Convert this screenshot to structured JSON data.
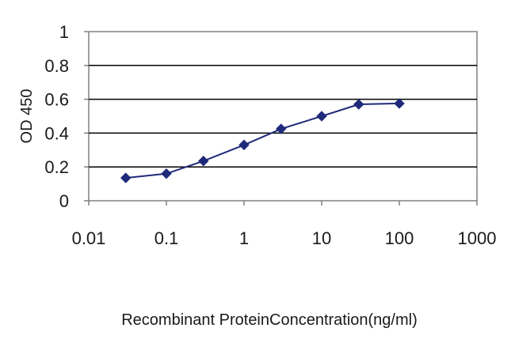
{
  "chart_data": {
    "type": "line",
    "title": "",
    "xlabel": "Recombinant ProteinConcentration(ng/ml)",
    "ylabel": "OD 450",
    "x_scale": "log",
    "xlim": [
      0.01,
      1000
    ],
    "ylim": [
      0,
      1
    ],
    "x_ticks": [
      "0.01",
      "0.1",
      "1",
      "10",
      "100",
      "1000"
    ],
    "y_ticks": [
      "0",
      "0.2",
      "0.4",
      "0.6",
      "0.8",
      "1"
    ],
    "grid": "horizontal",
    "legend": "none",
    "series": [
      {
        "x": [
          0.03,
          0.1,
          0.3,
          1,
          3,
          10,
          30,
          100
        ],
        "y": [
          0.135,
          0.16,
          0.235,
          0.33,
          0.425,
          0.5,
          0.57,
          0.575
        ],
        "color": "#1f2a7a",
        "marker": "diamond"
      }
    ]
  }
}
